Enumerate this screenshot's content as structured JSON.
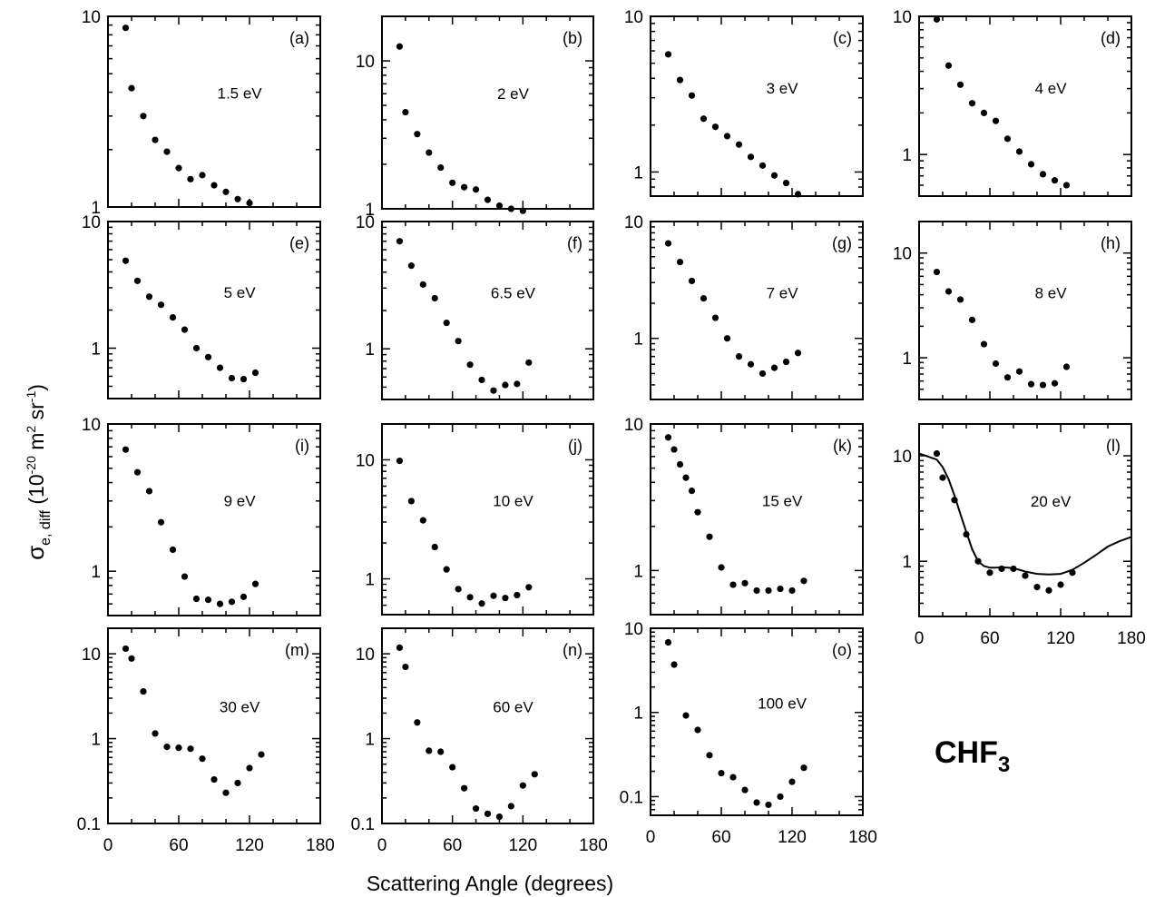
{
  "figure": {
    "ylabel": "σe, diff (10-20 m2 sr-1)",
    "ylabel_parts": {
      "sigma": "σ",
      "sub": "e, diff",
      "open": " (10",
      "exp1": "-20",
      "mid": " m",
      "exp2": "2",
      "mid2": " sr",
      "exp3": "-1",
      "close": ")"
    },
    "xlabel": "Scattering Angle (degrees)",
    "molecule": {
      "main": "CHF",
      "sub": "3"
    },
    "x_ticks": [
      "0",
      "60",
      "120",
      "180"
    ]
  },
  "chart_data": [
    {
      "type": "scatter",
      "panel": "(a)",
      "energy": "1.5 eV",
      "xlim": [
        0,
        180
      ],
      "ylim": [
        1,
        10
      ],
      "yscale": "log",
      "yticks": [
        1,
        10
      ],
      "x": [
        15,
        20,
        30,
        40,
        50,
        60,
        70,
        80,
        90,
        100,
        110,
        120,
        130
      ],
      "y": [
        8.7,
        4.2,
        3.0,
        2.25,
        1.95,
        1.6,
        1.4,
        1.47,
        1.3,
        1.2,
        1.1,
        1.05,
        null
      ]
    },
    {
      "type": "scatter",
      "panel": "(b)",
      "energy": "2 eV",
      "xlim": [
        0,
        180
      ],
      "ylim": [
        1,
        20
      ],
      "yscale": "log",
      "yticks": [
        1,
        10
      ],
      "x": [
        15,
        20,
        30,
        40,
        50,
        60,
        70,
        80,
        90,
        100,
        110,
        120,
        130
      ],
      "y": [
        12.5,
        4.5,
        3.2,
        2.4,
        1.9,
        1.5,
        1.4,
        1.35,
        1.15,
        1.05,
        1.0,
        0.97,
        null
      ]
    },
    {
      "type": "scatter",
      "panel": "(c)",
      "energy": "3 eV",
      "xlim": [
        0,
        180
      ],
      "ylim": [
        0.7,
        10
      ],
      "yscale": "log",
      "yticks": [
        1,
        10
      ],
      "x": [
        15,
        25,
        35,
        45,
        55,
        65,
        75,
        85,
        95,
        105,
        115,
        125
      ],
      "y": [
        5.7,
        3.9,
        3.1,
        2.2,
        1.95,
        1.7,
        1.5,
        1.25,
        1.1,
        0.95,
        0.85,
        0.72
      ]
    },
    {
      "type": "scatter",
      "panel": "(d)",
      "energy": "4 eV",
      "xlim": [
        0,
        180
      ],
      "ylim": [
        0.5,
        10
      ],
      "yscale": "log",
      "yticks": [
        1,
        10
      ],
      "x": [
        15,
        25,
        35,
        45,
        55,
        65,
        75,
        85,
        95,
        105,
        115,
        125
      ],
      "y": [
        9.5,
        4.4,
        3.2,
        2.35,
        2.0,
        1.75,
        1.3,
        1.05,
        0.85,
        0.72,
        0.65,
        0.6
      ]
    },
    {
      "type": "scatter",
      "panel": "(e)",
      "energy": "5 eV",
      "xlim": [
        0,
        180
      ],
      "ylim": [
        0.4,
        10
      ],
      "yscale": "log",
      "yticks": [
        1,
        10
      ],
      "x": [
        15,
        25,
        35,
        45,
        55,
        65,
        75,
        85,
        95,
        105,
        115,
        125
      ],
      "y": [
        4.9,
        3.4,
        2.55,
        2.2,
        1.75,
        1.4,
        1.0,
        0.85,
        0.7,
        0.58,
        0.57,
        0.64
      ]
    },
    {
      "type": "scatter",
      "panel": "(f)",
      "energy": "6.5 eV",
      "xlim": [
        0,
        180
      ],
      "ylim": [
        0.4,
        10
      ],
      "yscale": "log",
      "yticks": [
        1,
        10
      ],
      "x": [
        15,
        25,
        35,
        45,
        55,
        65,
        75,
        85,
        95,
        105,
        115,
        125
      ],
      "y": [
        7.0,
        4.5,
        3.2,
        2.5,
        1.6,
        1.15,
        0.75,
        0.57,
        0.47,
        0.52,
        0.53,
        0.78
      ]
    },
    {
      "type": "scatter",
      "panel": "(g)",
      "energy": "7 eV",
      "xlim": [
        0,
        180
      ],
      "ylim": [
        0.3,
        10
      ],
      "yscale": "log",
      "yticks": [
        1,
        10
      ],
      "x": [
        15,
        25,
        35,
        45,
        55,
        65,
        75,
        85,
        95,
        105,
        115,
        125
      ],
      "y": [
        6.5,
        4.5,
        3.1,
        2.2,
        1.5,
        1.0,
        0.7,
        0.6,
        0.5,
        0.56,
        0.63,
        0.75
      ]
    },
    {
      "type": "scatter",
      "panel": "(h)",
      "energy": "8 eV",
      "xlim": [
        0,
        180
      ],
      "ylim": [
        0.4,
        20
      ],
      "yscale": "log",
      "yticks": [
        1,
        10
      ],
      "x": [
        15,
        25,
        35,
        45,
        55,
        65,
        75,
        85,
        95,
        105,
        115,
        125
      ],
      "y": [
        6.6,
        4.3,
        3.6,
        2.3,
        1.35,
        0.88,
        0.65,
        0.74,
        0.56,
        0.55,
        0.57,
        0.82
      ]
    },
    {
      "type": "scatter",
      "panel": "(i)",
      "energy": "9 eV",
      "xlim": [
        0,
        180
      ],
      "ylim": [
        0.5,
        10
      ],
      "yscale": "log",
      "yticks": [
        1,
        10
      ],
      "x": [
        15,
        25,
        35,
        45,
        55,
        65,
        75,
        85,
        95,
        105,
        115,
        125
      ],
      "y": [
        6.7,
        4.7,
        3.5,
        2.15,
        1.4,
        0.92,
        0.65,
        0.64,
        0.6,
        0.62,
        0.67,
        0.82
      ]
    },
    {
      "type": "scatter",
      "panel": "(j)",
      "energy": "10 eV",
      "xlim": [
        0,
        180
      ],
      "ylim": [
        0.5,
        20
      ],
      "yscale": "log",
      "yticks": [
        1,
        10
      ],
      "x": [
        15,
        25,
        35,
        45,
        55,
        65,
        75,
        85,
        95,
        105,
        115,
        125
      ],
      "y": [
        9.8,
        4.5,
        3.1,
        1.85,
        1.2,
        0.82,
        0.7,
        0.62,
        0.72,
        0.69,
        0.73,
        0.85
      ]
    },
    {
      "type": "scatter",
      "panel": "(k)",
      "energy": "15 eV",
      "xlim": [
        0,
        180
      ],
      "ylim": [
        0.5,
        10
      ],
      "yscale": "log",
      "yticks": [
        1,
        10
      ],
      "x": [
        15,
        20,
        25,
        30,
        35,
        40,
        50,
        60,
        70,
        80,
        90,
        100,
        110,
        120,
        130
      ],
      "y": [
        8.1,
        6.7,
        5.3,
        4.3,
        3.5,
        2.5,
        1.7,
        1.05,
        0.8,
        0.82,
        0.73,
        0.73,
        0.75,
        0.73,
        0.85
      ]
    },
    {
      "type": "scatter",
      "panel": "(l)",
      "energy": "20 eV",
      "xlim": [
        0,
        180
      ],
      "ylim": [
        0.3,
        20
      ],
      "yscale": "log",
      "yticks": [
        1,
        10
      ],
      "x": [
        15,
        20,
        30,
        40,
        50,
        60,
        70,
        80,
        90,
        100,
        110,
        120,
        130
      ],
      "y": [
        10.5,
        6.2,
        3.8,
        1.8,
        1.0,
        0.78,
        0.85,
        0.85,
        0.73,
        0.57,
        0.53,
        0.6,
        0.78
      ],
      "curve": {
        "x": [
          0,
          15,
          20,
          25,
          30,
          35,
          40,
          45,
          50,
          55,
          60,
          65,
          70,
          80,
          90,
          100,
          110,
          120,
          130,
          140,
          150,
          160,
          170,
          180
        ],
        "y": [
          10.5,
          9.2,
          7.8,
          6.0,
          4.2,
          2.8,
          1.9,
          1.3,
          1.0,
          0.9,
          0.87,
          0.87,
          0.88,
          0.86,
          0.8,
          0.76,
          0.75,
          0.76,
          0.83,
          0.97,
          1.15,
          1.38,
          1.55,
          1.7
        ]
      }
    },
    {
      "type": "scatter",
      "panel": "(m)",
      "energy": "30 eV",
      "xlim": [
        0,
        180
      ],
      "ylim": [
        0.1,
        20
      ],
      "yscale": "log",
      "yticks": [
        0.1,
        1,
        10
      ],
      "x": [
        15,
        20,
        30,
        40,
        50,
        60,
        70,
        80,
        90,
        100,
        110,
        120,
        130
      ],
      "y": [
        11.5,
        8.8,
        3.6,
        1.15,
        0.8,
        0.78,
        0.76,
        0.58,
        0.33,
        0.23,
        0.3,
        0.45,
        0.65
      ]
    },
    {
      "type": "scatter",
      "panel": "(n)",
      "energy": "60 eV",
      "xlim": [
        0,
        180
      ],
      "ylim": [
        0.1,
        20
      ],
      "yscale": "log",
      "yticks": [
        0.1,
        1,
        10
      ],
      "x": [
        15,
        20,
        30,
        40,
        50,
        60,
        70,
        80,
        90,
        100,
        110,
        120,
        130
      ],
      "y": [
        11.8,
        7.0,
        1.55,
        0.72,
        0.7,
        0.46,
        0.26,
        0.15,
        0.13,
        0.12,
        0.16,
        0.28,
        0.38
      ]
    },
    {
      "type": "scatter",
      "panel": "(o)",
      "energy": "100 eV",
      "xlim": [
        0,
        180
      ],
      "ylim": [
        0.06,
        10
      ],
      "yscale": "log",
      "yticks": [
        0.1,
        1,
        10
      ],
      "x": [
        15,
        20,
        30,
        40,
        50,
        60,
        70,
        80,
        90,
        100,
        110,
        120,
        130
      ],
      "y": [
        6.8,
        3.7,
        0.92,
        0.62,
        0.31,
        0.19,
        0.17,
        0.12,
        0.085,
        0.08,
        0.1,
        0.15,
        0.22
      ]
    }
  ]
}
